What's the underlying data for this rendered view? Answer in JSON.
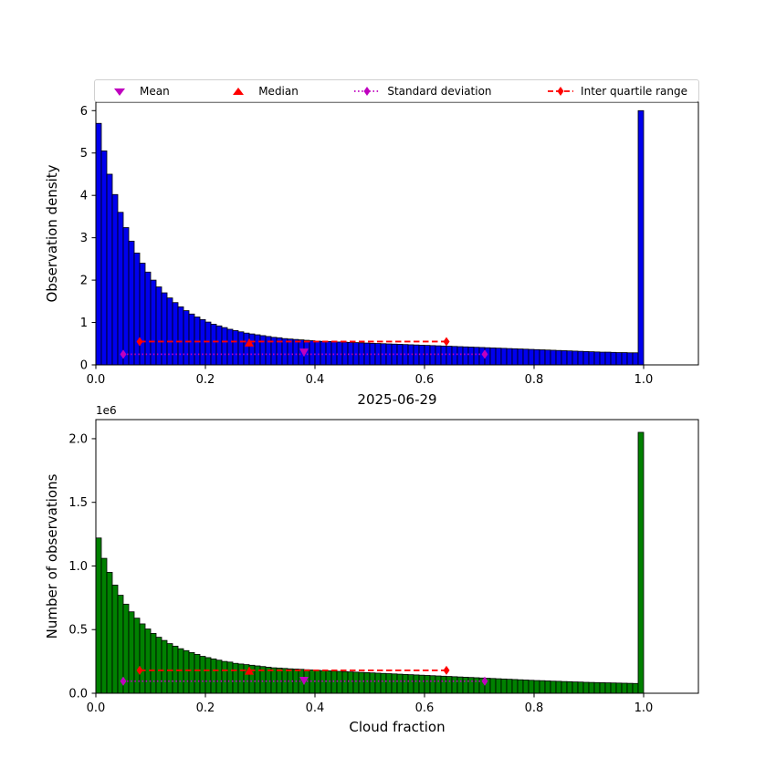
{
  "figure": {
    "background": "#ffffff",
    "title": "2025-06-29"
  },
  "legend": {
    "items": [
      {
        "label": "Mean",
        "marker": "triangle-down-icon",
        "color": "#bf00bf"
      },
      {
        "label": "Median",
        "marker": "triangle-up-icon",
        "color": "#ff0000"
      },
      {
        "label": "Standard deviation",
        "marker": "diamond-dotted-icon",
        "color": "#bf00bf"
      },
      {
        "label": "Inter quartile range",
        "marker": "diamond-dashed-icon",
        "color": "#ff0000"
      }
    ]
  },
  "chart_data": [
    {
      "id": "density",
      "type": "bar",
      "title": "",
      "xlabel": "",
      "ylabel": "Observation density",
      "bar_color": "#0000ee",
      "edge_color": "#000000",
      "bin_start": 0.0,
      "bin_width": 0.01,
      "xlim": [
        0.0,
        1.1
      ],
      "ylim": [
        0.0,
        6.2
      ],
      "xticks": [
        0.0,
        0.2,
        0.4,
        0.6,
        0.8,
        1.0
      ],
      "xtick_labels": [
        "0.0",
        "0.2",
        "0.4",
        "0.6",
        "0.8",
        "1.0"
      ],
      "yticks": [
        0,
        1,
        2,
        3,
        4,
        5,
        6
      ],
      "ytick_labels": [
        "0",
        "1",
        "2",
        "3",
        "4",
        "5",
        "6"
      ],
      "offset_text": "",
      "values": [
        5.7,
        5.05,
        4.5,
        4.02,
        3.6,
        3.24,
        2.92,
        2.64,
        2.4,
        2.19,
        2.0,
        1.84,
        1.7,
        1.58,
        1.47,
        1.37,
        1.28,
        1.2,
        1.13,
        1.07,
        1.01,
        0.96,
        0.92,
        0.88,
        0.84,
        0.81,
        0.78,
        0.75,
        0.73,
        0.71,
        0.69,
        0.67,
        0.65,
        0.64,
        0.62,
        0.61,
        0.6,
        0.59,
        0.58,
        0.57,
        0.56,
        0.555,
        0.55,
        0.545,
        0.54,
        0.535,
        0.53,
        0.525,
        0.52,
        0.515,
        0.51,
        0.505,
        0.5,
        0.495,
        0.49,
        0.485,
        0.48,
        0.475,
        0.47,
        0.465,
        0.46,
        0.455,
        0.45,
        0.445,
        0.44,
        0.435,
        0.43,
        0.425,
        0.42,
        0.415,
        0.41,
        0.405,
        0.4,
        0.395,
        0.39,
        0.385,
        0.38,
        0.375,
        0.37,
        0.365,
        0.36,
        0.355,
        0.35,
        0.345,
        0.34,
        0.335,
        0.33,
        0.325,
        0.32,
        0.315,
        0.31,
        0.305,
        0.3,
        0.3,
        0.295,
        0.29,
        0.29,
        0.285,
        0.285,
        6.0
      ],
      "stats": {
        "mean": {
          "x": 0.38,
          "y": 0.3,
          "color": "#bf00bf"
        },
        "median": {
          "x": 0.28,
          "y": 0.52,
          "color": "#ff0000"
        },
        "std": {
          "x1": 0.05,
          "x2": 0.71,
          "y": 0.25,
          "color": "#bf00bf",
          "style": "dotted"
        },
        "iqr": {
          "x1": 0.08,
          "x2": 0.64,
          "y": 0.55,
          "color": "#ff0000",
          "style": "dashed"
        }
      }
    },
    {
      "id": "counts",
      "type": "bar",
      "title": "2025-06-29",
      "xlabel": "Cloud fraction",
      "ylabel": "Number of observations",
      "bar_color": "#008000",
      "edge_color": "#000000",
      "bin_start": 0.0,
      "bin_width": 0.01,
      "xlim": [
        0.0,
        1.1
      ],
      "ylim": [
        0.0,
        2.15
      ],
      "unit_scale": "1e6",
      "xticks": [
        0.0,
        0.2,
        0.4,
        0.6,
        0.8,
        1.0
      ],
      "xtick_labels": [
        "0.0",
        "0.2",
        "0.4",
        "0.6",
        "0.8",
        "1.0"
      ],
      "yticks": [
        0.0,
        0.5,
        1.0,
        1.5,
        2.0
      ],
      "ytick_labels": [
        "0.0",
        "0.5",
        "1.0",
        "1.5",
        "2.0"
      ],
      "offset_text": "1e6",
      "values": [
        1.22,
        1.06,
        0.95,
        0.85,
        0.77,
        0.7,
        0.64,
        0.59,
        0.545,
        0.505,
        0.47,
        0.44,
        0.415,
        0.39,
        0.37,
        0.35,
        0.335,
        0.32,
        0.305,
        0.29,
        0.28,
        0.27,
        0.26,
        0.25,
        0.245,
        0.235,
        0.23,
        0.225,
        0.22,
        0.215,
        0.21,
        0.205,
        0.2,
        0.198,
        0.195,
        0.192,
        0.19,
        0.188,
        0.185,
        0.183,
        0.18,
        0.178,
        0.176,
        0.174,
        0.172,
        0.17,
        0.168,
        0.166,
        0.164,
        0.162,
        0.16,
        0.158,
        0.156,
        0.154,
        0.152,
        0.15,
        0.148,
        0.146,
        0.144,
        0.142,
        0.14,
        0.138,
        0.136,
        0.134,
        0.132,
        0.13,
        0.128,
        0.126,
        0.124,
        0.122,
        0.12,
        0.118,
        0.116,
        0.114,
        0.112,
        0.11,
        0.108,
        0.106,
        0.104,
        0.102,
        0.1,
        0.099,
        0.097,
        0.095,
        0.094,
        0.092,
        0.091,
        0.089,
        0.088,
        0.086,
        0.085,
        0.084,
        0.083,
        0.082,
        0.081,
        0.08,
        0.079,
        0.078,
        0.077,
        2.05
      ],
      "stats": {
        "mean": {
          "x": 0.38,
          "y": 0.1,
          "color": "#bf00bf"
        },
        "median": {
          "x": 0.28,
          "y": 0.175,
          "color": "#ff0000"
        },
        "std": {
          "x1": 0.05,
          "x2": 0.71,
          "y": 0.095,
          "color": "#bf00bf",
          "style": "dotted"
        },
        "iqr": {
          "x1": 0.08,
          "x2": 0.64,
          "y": 0.18,
          "color": "#ff0000",
          "style": "dashed"
        }
      }
    }
  ]
}
